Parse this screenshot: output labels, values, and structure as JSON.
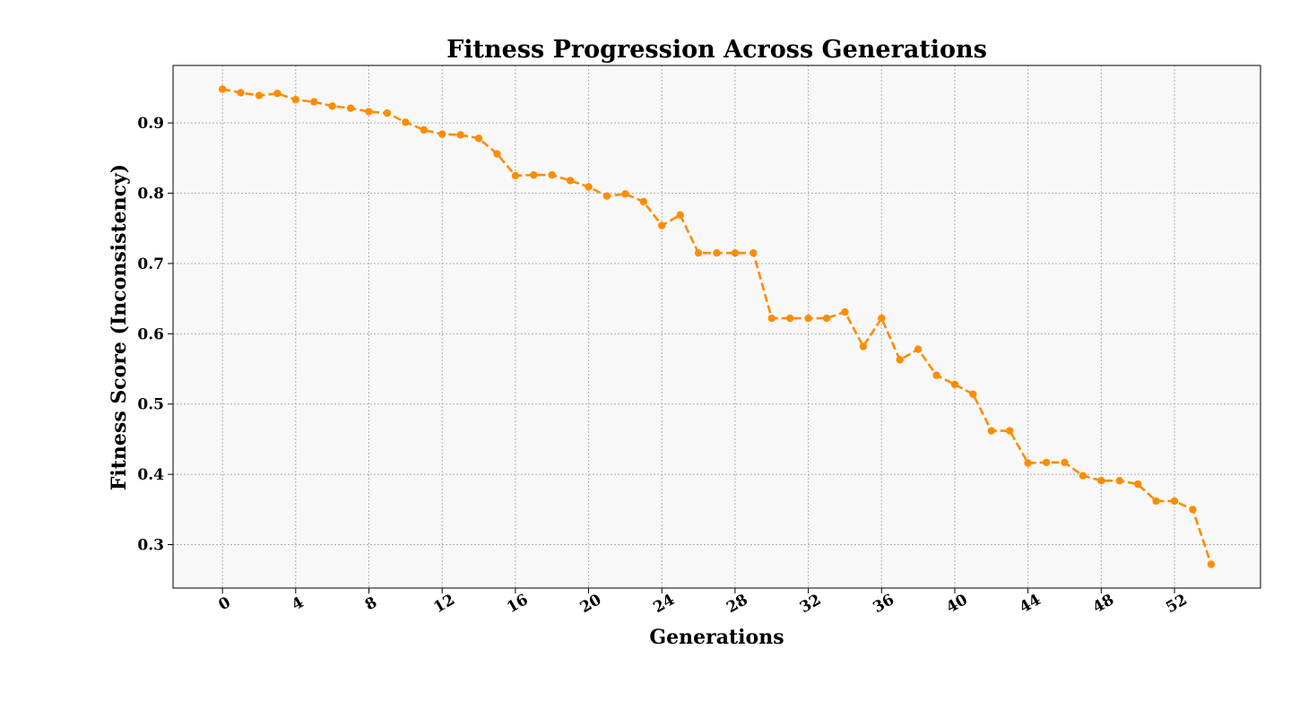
{
  "chart_data": {
    "type": "line",
    "title": "Fitness Progression Across Generations",
    "xlabel": "Generations",
    "ylabel": "Fitness Score (Inconsistency)",
    "x": [
      0,
      1,
      2,
      3,
      4,
      5,
      6,
      7,
      8,
      9,
      10,
      11,
      12,
      13,
      14,
      15,
      16,
      17,
      18,
      19,
      20,
      21,
      22,
      23,
      24,
      25,
      26,
      27,
      28,
      29,
      30,
      31,
      32,
      33,
      34,
      35,
      36,
      37,
      38,
      39,
      40,
      41,
      42,
      43,
      44,
      45,
      46,
      47,
      48,
      49,
      50,
      51,
      52,
      53,
      54
    ],
    "series": [
      {
        "values": [
          0.948,
          0.943,
          0.939,
          0.942,
          0.933,
          0.93,
          0.924,
          0.921,
          0.916,
          0.914,
          0.901,
          0.89,
          0.884,
          0.883,
          0.878,
          0.856,
          0.825,
          0.826,
          0.826,
          0.818,
          0.809,
          0.796,
          0.799,
          0.788,
          0.754,
          0.769,
          0.715,
          0.715,
          0.715,
          0.715,
          0.622,
          0.622,
          0.622,
          0.622,
          0.631,
          0.582,
          0.622,
          0.563,
          0.578,
          0.541,
          0.528,
          0.514,
          0.462,
          0.462,
          0.416,
          0.417,
          0.417,
          0.398,
          0.391,
          0.391,
          0.386,
          0.362,
          0.362,
          0.35,
          0.272
        ],
        "color": "#ff8c00"
      }
    ],
    "x_ticks": [
      0,
      4,
      8,
      12,
      16,
      20,
      24,
      28,
      32,
      36,
      40,
      44,
      48,
      52
    ],
    "y_ticks": [
      0.3,
      0.4,
      0.5,
      0.6,
      0.7,
      0.8,
      0.9
    ],
    "xlim": [
      -2.7,
      56.7
    ],
    "ylim": [
      0.2382,
      0.9818
    ],
    "grid": true,
    "line_style": "dashed",
    "marker": "circle",
    "background_color": "#f8f8f8"
  }
}
